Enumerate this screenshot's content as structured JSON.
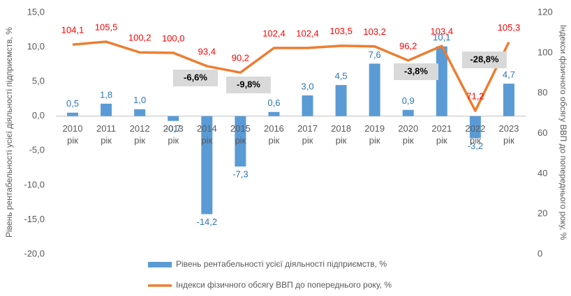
{
  "chart_data": {
    "type": "bar",
    "categories": [
      "2010 рік",
      "2011 рік",
      "2012 рік",
      "2013 рік",
      "2014 рік",
      "2015 рік",
      "2016 рік",
      "2017 рік",
      "2018 рік",
      "2019 рік",
      "2020 рік",
      "2021 рік",
      "2022 рік",
      "2023 рік"
    ],
    "series": [
      {
        "name": "Рівень рентабельності усієї діяльності підприємств, %",
        "type": "bar",
        "color": "#5b9bd5",
        "label_color": "#2e75b6",
        "values": [
          0.5,
          1.8,
          1.0,
          -0.7,
          -14.2,
          -7.3,
          0.6,
          3.0,
          4.5,
          7.6,
          0.9,
          10.1,
          -3.2,
          4.7
        ],
        "value_labels": [
          "0,5",
          "1,8",
          "1,0",
          "-0,7",
          "-14,2",
          "-7,3",
          "0,6",
          "3,0",
          "4,5",
          "7,6",
          "0,9",
          "10,1",
          "-3,2",
          "4,7"
        ]
      },
      {
        "name": "Індекси фізичного обсягу ВВП до попереднього року, %",
        "type": "line",
        "axis": "y2",
        "color": "#ed7d31",
        "label_color": "#ff0000",
        "values": [
          104.1,
          105.5,
          100.2,
          100.0,
          93.4,
          90.2,
          102.4,
          102.4,
          103.5,
          103.2,
          96.2,
          103.4,
          71.2,
          105.3
        ],
        "value_labels": [
          "104,1",
          "105,5",
          "100,2",
          "100,0",
          "93,4",
          "90,2",
          "102,4",
          "102,4",
          "103,5",
          "103,2",
          "96,2",
          "103,4",
          "71,2",
          "105,3"
        ]
      }
    ],
    "ylabel": "Рівень рентабельності усієї діяльності підприємств, %",
    "y2label": "Індекси фізичного обсягу ВВП до попереднього року, %",
    "ylim": [
      -20,
      15
    ],
    "yticks": [
      {
        "value": -20,
        "label": "-20,0"
      },
      {
        "value": -15,
        "label": "-15,0"
      },
      {
        "value": -10,
        "label": "-10,0"
      },
      {
        "value": -5,
        "label": "-5,0"
      },
      {
        "value": 0,
        "label": "0,0"
      },
      {
        "value": 5,
        "label": "5,0"
      },
      {
        "value": 10,
        "label": "10,0"
      },
      {
        "value": 15,
        "label": "15,0"
      }
    ],
    "y2lim": [
      0,
      120
    ],
    "y2ticks": [
      0,
      20,
      40,
      60,
      80,
      100,
      120
    ],
    "annotations": [
      "-6,6%",
      "-9,8%",
      "-3,8%",
      "-28,8%"
    ],
    "grid": false,
    "legend": "bottom"
  }
}
